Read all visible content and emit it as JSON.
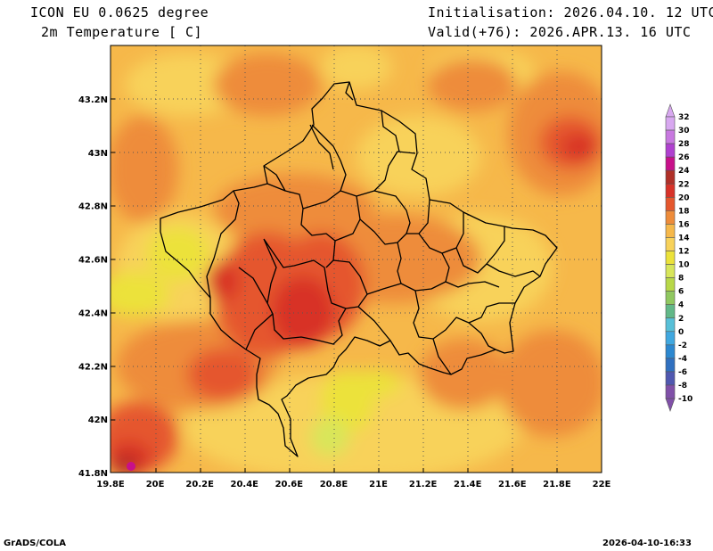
{
  "header": {
    "model": "ICON EU 0.0625 degree",
    "variable": "2m Temperature [ C]",
    "init": "Initialisation: 2026.04.10. 12 UTC",
    "valid": "Valid(+76): 2026.APR.13. 16 UTC"
  },
  "footer": {
    "software": "GrADS/COLA",
    "timestamp": "2026-04-10-16:33"
  },
  "map": {
    "lat_labels": [
      "43.2N",
      "43N",
      "42.8N",
      "42.6N",
      "42.4N",
      "42.2N",
      "42N",
      "41.8N"
    ],
    "lat_values": [
      43.2,
      43.0,
      42.8,
      42.6,
      42.4,
      42.2,
      42.0,
      41.8
    ],
    "lon_labels": [
      "19.8E",
      "20E",
      "20.2E",
      "20.4E",
      "20.6E",
      "20.8E",
      "21E",
      "21.2E",
      "21.4E",
      "21.6E",
      "21.8E",
      "22E"
    ],
    "lon_values": [
      19.8,
      20.0,
      20.2,
      20.4,
      20.6,
      20.8,
      21.0,
      21.2,
      21.4,
      21.6,
      21.8,
      22.0
    ],
    "lon_range": [
      19.8,
      22.0
    ],
    "lat_range": [
      41.8,
      43.4
    ]
  },
  "colorbar": {
    "labels": [
      "32",
      "30",
      "28",
      "26",
      "24",
      "22",
      "20",
      "18",
      "16",
      "14",
      "12",
      "10",
      "8",
      "6",
      "4",
      "2",
      "0",
      "-2",
      "-4",
      "-6",
      "-8",
      "-10"
    ],
    "colors": [
      "#d8a8f0",
      "#c878e0",
      "#b040d0",
      "#c8108a",
      "#b03028",
      "#d83228",
      "#e5572d",
      "#ee8c3a",
      "#f6b84a",
      "#f8d25a",
      "#ece23a",
      "#d8e65a",
      "#b8d848",
      "#90c860",
      "#62b888",
      "#58c0d8",
      "#40a8e0",
      "#2c88d0",
      "#3070c0",
      "#5058b0",
      "#8050a8"
    ]
  }
}
